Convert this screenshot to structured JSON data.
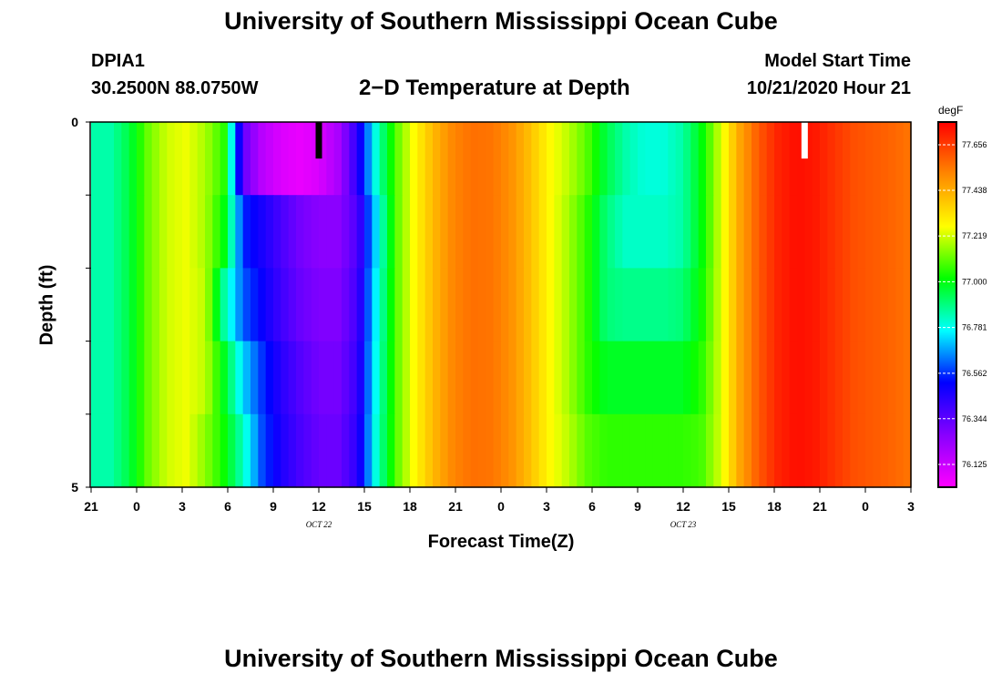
{
  "header": {
    "title": "University of Southern Mississippi Ocean Cube",
    "station": "DPIA1",
    "coords": "30.2500N 88.0750W",
    "plot_title": "2−D Temperature at Depth",
    "model_label": "Model Start Time",
    "model_time": "10/21/2020 Hour 21"
  },
  "footer": {
    "title": "University of Southern Mississippi Ocean Cube"
  },
  "chart_data": {
    "type": "heatmap",
    "title": "2-D Temperature at Depth",
    "xlabel": "Forecast Time(Z)",
    "ylabel": "Depth (ft)",
    "units": "degF",
    "x_hours": [
      0,
      54
    ],
    "x_tick_labels": [
      "21",
      "0",
      "3",
      "6",
      "9",
      "12",
      "15",
      "18",
      "21",
      "0",
      "3",
      "6",
      "9",
      "12",
      "15",
      "18",
      "21",
      "0",
      "3"
    ],
    "date_labels": [
      {
        "text": "OCT 22",
        "hour": 15
      },
      {
        "text": "OCT 23",
        "hour": 39
      }
    ],
    "y_range": [
      0,
      5
    ],
    "y_tick_labels": [
      "0",
      "5"
    ],
    "colorbar": {
      "min": 76.016,
      "max": 77.765,
      "labels": [
        "77.656",
        "77.438",
        "77.219",
        "77.000",
        "76.781",
        "76.562",
        "76.344",
        "76.125"
      ],
      "colors": [
        "#ff00ff",
        "#8800ff",
        "#0000ff",
        "#00ffff",
        "#00ff00",
        "#ffff00",
        "#ff8800",
        "#ff0000"
      ]
    },
    "depth_bands": [
      0.5,
      1.5,
      2.5,
      3.5,
      4.5
    ],
    "temperature_profiles": [
      [
        76.85,
        76.85,
        76.95,
        77.12,
        77.22,
        77.25,
        77.18,
        77.05,
        76.33,
        76.16,
        76.09,
        76.06,
        76.1,
        76.2,
        76.45,
        76.82,
        77.1,
        77.28,
        77.42,
        77.52,
        77.56,
        77.55,
        77.5,
        77.4,
        77.28,
        77.2,
        77.1,
        76.95,
        76.85,
        76.8,
        76.8,
        76.85,
        77.0,
        77.22,
        77.45,
        77.6,
        77.7,
        77.74,
        77.72,
        77.67,
        77.62,
        77.6,
        77.58,
        77.55
      ],
      [
        76.85,
        76.85,
        76.95,
        77.12,
        77.22,
        77.25,
        77.18,
        77.0,
        76.55,
        76.47,
        76.38,
        76.3,
        76.26,
        76.26,
        76.38,
        76.75,
        77.1,
        77.28,
        77.42,
        77.52,
        77.56,
        77.55,
        77.5,
        77.4,
        77.28,
        77.18,
        77.06,
        76.9,
        76.82,
        76.82,
        76.82,
        76.85,
        77.0,
        77.22,
        77.45,
        77.6,
        77.7,
        77.74,
        77.72,
        77.67,
        77.62,
        77.6,
        77.58,
        77.55
      ],
      [
        76.85,
        76.85,
        76.95,
        77.12,
        77.22,
        77.25,
        77.2,
        76.85,
        76.6,
        76.5,
        76.4,
        76.32,
        76.28,
        76.28,
        76.4,
        76.78,
        77.1,
        77.28,
        77.42,
        77.52,
        77.56,
        77.55,
        77.5,
        77.4,
        77.28,
        77.18,
        77.06,
        76.9,
        76.88,
        76.88,
        76.88,
        76.9,
        77.02,
        77.22,
        77.45,
        77.6,
        77.7,
        77.74,
        77.72,
        77.67,
        77.62,
        77.6,
        77.58,
        77.55
      ],
      [
        76.85,
        76.85,
        76.95,
        77.12,
        77.22,
        77.25,
        77.2,
        76.98,
        76.72,
        76.56,
        76.44,
        76.36,
        76.3,
        76.3,
        76.42,
        76.8,
        77.1,
        77.28,
        77.42,
        77.52,
        77.56,
        77.55,
        77.5,
        77.4,
        77.28,
        77.18,
        77.06,
        76.98,
        76.98,
        76.98,
        76.98,
        76.98,
        77.05,
        77.22,
        77.45,
        77.6,
        77.7,
        77.74,
        77.72,
        77.67,
        77.62,
        77.6,
        77.58,
        77.55
      ],
      [
        76.85,
        76.85,
        76.95,
        77.12,
        77.22,
        77.25,
        77.15,
        77.02,
        76.82,
        76.58,
        76.46,
        76.38,
        76.32,
        76.32,
        76.44,
        76.82,
        77.1,
        77.28,
        77.42,
        77.52,
        77.56,
        77.55,
        77.5,
        77.4,
        77.28,
        77.2,
        77.1,
        77.06,
        77.06,
        77.06,
        77.06,
        77.06,
        77.08,
        77.22,
        77.45,
        77.6,
        77.7,
        77.74,
        77.72,
        77.67,
        77.62,
        77.6,
        77.58,
        77.55
      ]
    ],
    "markers": [
      {
        "hour": 15,
        "color": "#000000",
        "depth_range": [
          0,
          0.5
        ]
      },
      {
        "hour": 47,
        "color": "#ffffff",
        "depth_range": [
          0,
          0.5
        ]
      }
    ]
  }
}
